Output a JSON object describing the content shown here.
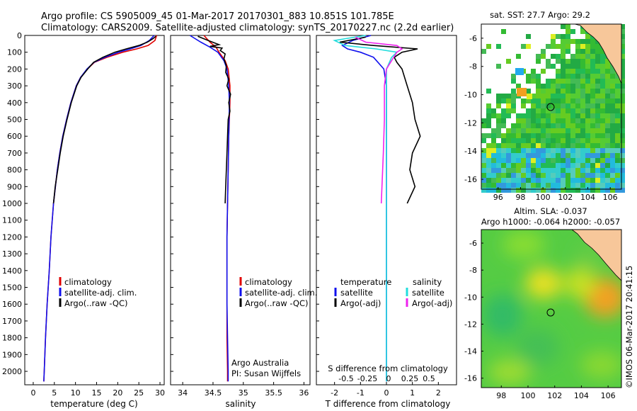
{
  "header": {
    "line1": "Argo profile: CS 5905009_45 01-Mar-2017 20170301_883 10.851S 101.785E",
    "line2": "Climatology: CARS2009. Satellite-adjusted climatology: synTS_20170227.nc (2.2d earlier)"
  },
  "colors": {
    "climatology": "#e00000",
    "satellite": "#1010ee",
    "argo": "#000000",
    "salinity_sat": "#22dddd",
    "salinity_argo": "#ee22ee"
  },
  "chart_data": [
    {
      "type": "line",
      "panel": "temperature",
      "xlabel": "temperature (deg C)",
      "xlim": [
        -2,
        31
      ],
      "xticks": [
        0,
        5,
        10,
        15,
        20,
        25,
        30
      ],
      "ylim": [
        2080,
        0
      ],
      "yticks": [
        0,
        100,
        200,
        300,
        400,
        500,
        600,
        700,
        800,
        900,
        1000,
        1100,
        1200,
        1300,
        1400,
        1500,
        1600,
        1700,
        1800,
        1900,
        2000
      ],
      "legend": [
        "climatology",
        "satellite-adj. clim.",
        "Argo(..raw -QC)"
      ],
      "series": [
        {
          "name": "climatology",
          "depth": [
            0,
            30,
            60,
            80,
            100,
            130,
            160,
            200,
            250,
            300,
            400,
            500,
            600,
            700,
            800,
            1000,
            1200,
            1400,
            1600,
            1800,
            2000,
            2060
          ],
          "values": [
            29.2,
            28.8,
            27.2,
            24.5,
            21.2,
            17.5,
            14.5,
            12.8,
            11.2,
            10.2,
            8.9,
            7.9,
            7.0,
            6.3,
            5.7,
            4.8,
            4.2,
            3.8,
            3.3,
            2.9,
            2.6,
            2.5
          ]
        },
        {
          "name": "satellite-adj. clim.",
          "depth": [
            0,
            30,
            60,
            80,
            100,
            130,
            160,
            200,
            250,
            300,
            400,
            500,
            600,
            700,
            800,
            1000,
            1200,
            1400,
            1600,
            1800,
            2000,
            2060
          ],
          "values": [
            28.6,
            27.5,
            25.5,
            23.0,
            20.2,
            17.0,
            14.4,
            12.7,
            11.2,
            10.2,
            8.9,
            7.9,
            7.0,
            6.3,
            5.7,
            4.8,
            4.2,
            3.8,
            3.3,
            2.9,
            2.6,
            2.5
          ]
        },
        {
          "name": "Argo(..raw -QC)",
          "depth": [
            5,
            20,
            40,
            60,
            80,
            100,
            130,
            160,
            200,
            250,
            300,
            400,
            500,
            600,
            700,
            800,
            900,
            1000
          ],
          "values": [
            29.0,
            28.3,
            27.0,
            25.0,
            22.0,
            19.3,
            16.5,
            14.3,
            12.9,
            11.3,
            10.3,
            9.0,
            8.0,
            7.1,
            6.4,
            5.8,
            5.2,
            4.8
          ]
        }
      ]
    },
    {
      "type": "line",
      "panel": "salinity",
      "xlabel": "salinity",
      "xlim": [
        33.8,
        36.1
      ],
      "xticks": [
        34,
        34.5,
        35,
        35.5,
        36
      ],
      "ylim": [
        2080,
        0
      ],
      "legend": [
        "climatology",
        "satellite-adj. clim.",
        "Argo(..raw -QC)"
      ],
      "series": [
        {
          "name": "climatology",
          "depth": [
            0,
            40,
            70,
            100,
            150,
            200,
            300,
            400,
            600,
            800,
            1000,
            1200,
            1400,
            1600,
            1800,
            2000,
            2060
          ],
          "values": [
            34.35,
            34.45,
            34.55,
            34.6,
            34.7,
            34.75,
            34.78,
            34.78,
            34.76,
            34.75,
            34.74,
            34.73,
            34.73,
            34.73,
            34.73,
            34.74,
            34.74
          ]
        },
        {
          "name": "satellite-adj. clim.",
          "depth": [
            0,
            40,
            70,
            100,
            150,
            200,
            300,
            400,
            600,
            800,
            1000,
            1200,
            1400,
            1600,
            1800,
            2000,
            2060
          ],
          "values": [
            34.12,
            34.3,
            34.45,
            34.58,
            34.68,
            34.73,
            34.76,
            34.77,
            34.76,
            34.75,
            34.74,
            34.73,
            34.73,
            34.73,
            34.74,
            34.75,
            34.75
          ]
        },
        {
          "name": "Argo(..raw -QC)",
          "depth": [
            5,
            30,
            55,
            65,
            75,
            90,
            110,
            140,
            180,
            220,
            260,
            300,
            350,
            400,
            450,
            500,
            600,
            700,
            800,
            900,
            1000
          ],
          "values": [
            34.25,
            34.42,
            34.6,
            34.45,
            34.65,
            34.62,
            34.7,
            34.68,
            34.72,
            34.71,
            34.76,
            34.73,
            34.79,
            34.76,
            34.78,
            34.75,
            34.74,
            34.73,
            34.72,
            34.71,
            34.7
          ]
        }
      ]
    },
    {
      "type": "line",
      "panel": "difference",
      "xlabel": "T difference from climatology",
      "xlabel_top": "S difference from climatology",
      "xlim": [
        -2.7,
        2.7
      ],
      "xticks": [
        -2,
        -1,
        0,
        1,
        2
      ],
      "s_ticks": [
        "-0.5",
        "-0.25",
        "0",
        "0.25",
        "0.5"
      ],
      "ylim": [
        2080,
        0
      ],
      "legend_headers": [
        "temperature",
        "salinity"
      ],
      "legend": [
        "satellite",
        "Argo(-adj)",
        "satellite",
        "Argo(-adj)"
      ],
      "series": [
        {
          "name": "temperature satellite",
          "depth": [
            0,
            30,
            60,
            80,
            100,
            130,
            200,
            300,
            500,
            1000,
            2060
          ],
          "values": [
            -0.6,
            -1.3,
            -1.7,
            -1.5,
            -1.0,
            -0.5,
            -0.1,
            0,
            0,
            0,
            0
          ]
        },
        {
          "name": "temperature Argo(-adj)",
          "depth": [
            10,
            40,
            60,
            80,
            100,
            130,
            160,
            200,
            300,
            400,
            500,
            600,
            700,
            800,
            900,
            1000
          ],
          "values": [
            -0.8,
            -1.8,
            -0.5,
            1.2,
            0.6,
            0.3,
            0.4,
            0.6,
            0.8,
            1.0,
            1.1,
            1.3,
            1.0,
            0.9,
            1.1,
            0.8
          ]
        },
        {
          "name": "salinity satellite",
          "depth": [
            0,
            30,
            60,
            80,
            100,
            130,
            200,
            300,
            500,
            1000,
            2060
          ],
          "values": [
            -0.2,
            -0.5,
            -0.4,
            -0.1,
            0.1,
            0.05,
            0,
            0,
            0,
            0,
            0
          ]
        },
        {
          "name": "salinity Argo(-adj)",
          "depth": [
            10,
            40,
            60,
            80,
            100,
            150,
            200,
            300,
            500,
            700,
            1000
          ],
          "values": [
            -0.3,
            -0.2,
            0.1,
            0.15,
            0.1,
            0.05,
            0.0,
            -0.02,
            -0.02,
            -0.03,
            -0.05
          ]
        }
      ]
    },
    {
      "type": "heatmap",
      "panel": "sst-map",
      "title": "sat. SST: 27.7 Argo: 29.2",
      "xticks": [
        "96",
        "98",
        "100",
        "102",
        "104",
        "106"
      ],
      "yticks": [
        "-6",
        "-8",
        "-10",
        "-12",
        "-14",
        "-16"
      ],
      "xlim": [
        94.5,
        107
      ],
      "ylim": [
        -16.7,
        -5
      ]
    },
    {
      "type": "heatmap",
      "panel": "sla-map",
      "title1": "Altim. SLA: -0.037",
      "title2": "Argo h1000: -0.064 h2000: -0.057",
      "xticks": [
        "98",
        "100",
        "102",
        "104",
        "106"
      ],
      "yticks": [
        "-6",
        "-8",
        "-10",
        "-12",
        "-14",
        "-16"
      ],
      "xlim": [
        96.5,
        107
      ],
      "ylim": [
        -16.7,
        -5
      ]
    }
  ],
  "side_stamp": "©IMOS 06-Mar-2017 20:41:15",
  "annotation": {
    "line1": "Argo Australia",
    "line2": "PI: Susan Wijffels"
  }
}
